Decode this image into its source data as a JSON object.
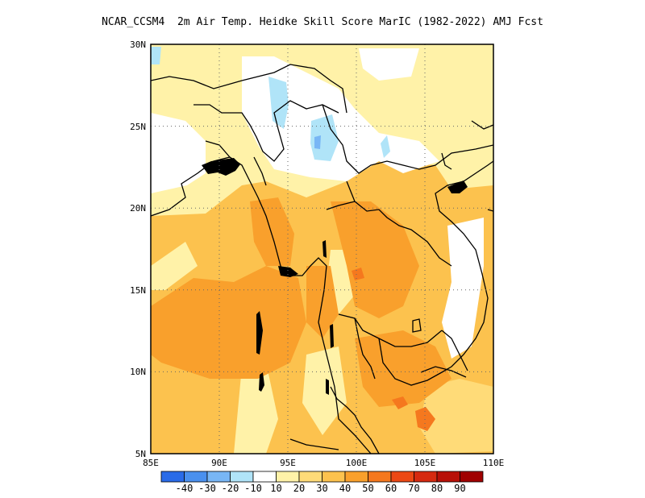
{
  "title": "NCAR_CCSM4  2m Air Temp. Heidke Skill Score MarIC (1982-2022) AMJ Fcst",
  "map": {
    "lon_range": [
      85,
      110
    ],
    "lat_range": [
      5,
      30
    ],
    "x_ticks": [
      "85E",
      "90E",
      "95E",
      "100E",
      "105E",
      "110E"
    ],
    "y_ticks": [
      "5N",
      "10N",
      "15N",
      "20N",
      "25N",
      "30N"
    ],
    "grid": "dotted"
  },
  "colorbar": {
    "labels": [
      "-40",
      "-30",
      "-20",
      "-10",
      "10",
      "20",
      "30",
      "40",
      "50",
      "60",
      "70",
      "80",
      "90"
    ],
    "colors": [
      "#2a6be8",
      "#4a90ee",
      "#78b6f5",
      "#b0e4f8",
      "#ffffff",
      "#fff2a8",
      "#ffdb78",
      "#fcc24e",
      "#f9a02c",
      "#f5781e",
      "#ec4814",
      "#d62a10",
      "#b81008",
      "#a00000"
    ]
  }
}
